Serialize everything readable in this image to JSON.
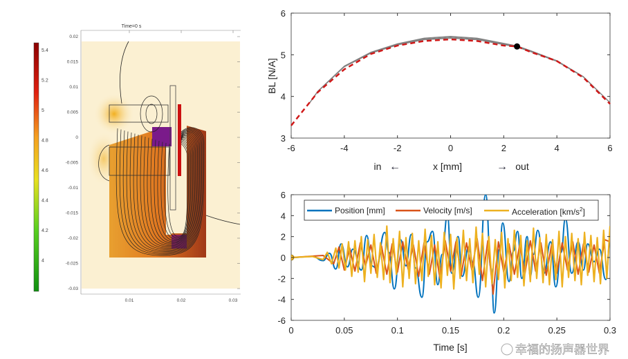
{
  "field_plot": {
    "title": "Time=0 s",
    "colorbar_ticks": [
      "5.4",
      "5.2",
      "5",
      "4.8",
      "4.6",
      "4.4",
      "4.2",
      "4"
    ],
    "colorbar_colors": [
      "#8b0000",
      "#e01010",
      "#f07820",
      "#f5d020",
      "#c8e020",
      "#30c020",
      "#109010"
    ],
    "y_ticks": [
      "0.02",
      "0.015",
      "0.01",
      "0.005",
      "0",
      "-0.005",
      "-0.01",
      "-0.015",
      "-0.02",
      "-0.025",
      "-0.03"
    ],
    "x_ticks": [
      "0.01",
      "0.02",
      "0.03"
    ]
  },
  "watermark": "幸福的扬声器世界",
  "chart_data": [
    {
      "type": "line",
      "xlabel": "x [mm]",
      "xlabel_left": "in",
      "xlabel_right": "out",
      "ylabel": "BL [N/A]",
      "xlim": [
        -6,
        6
      ],
      "ylim": [
        3,
        6
      ],
      "x_ticks": [
        "-6",
        "-4",
        "-2",
        "0",
        "2",
        "4",
        "6"
      ],
      "y_ticks": [
        "3",
        "4",
        "5",
        "6"
      ],
      "grid": false,
      "series": [
        {
          "style": "dashed",
          "color": "#d01818",
          "x": [
            -6,
            -5,
            -4,
            -3,
            -2,
            -1,
            0,
            1,
            2,
            2.5,
            3,
            4,
            5,
            6
          ],
          "y": [
            3.3,
            4.1,
            4.65,
            5.02,
            5.22,
            5.33,
            5.37,
            5.33,
            5.22,
            5.2,
            5.07,
            4.85,
            4.45,
            3.82
          ]
        },
        {
          "style": "solid",
          "color": "#808080",
          "x": [
            -5.3,
            -5,
            -4,
            -3,
            -2,
            -1,
            0,
            1,
            2,
            2.5,
            3,
            4,
            5,
            6
          ],
          "y": [
            3.85,
            4.12,
            4.72,
            5.05,
            5.25,
            5.38,
            5.42,
            5.38,
            5.26,
            5.2,
            5.09,
            4.85,
            4.47,
            3.85
          ]
        }
      ],
      "marker": {
        "x": 2.5,
        "y": 5.2,
        "color": "#000000"
      }
    },
    {
      "type": "line",
      "xlabel": "Time [s]",
      "xlim": [
        0,
        0.3
      ],
      "ylim": [
        -6,
        6
      ],
      "x_ticks": [
        "0",
        "0.05",
        "0.1",
        "0.15",
        "0.2",
        "0.25",
        "0.3"
      ],
      "y_ticks": [
        "-6",
        "-4",
        "-2",
        "0",
        "2",
        "4",
        "6"
      ],
      "grid": false,
      "legend": "top",
      "marker": {
        "x": 0,
        "y": 0,
        "color": "#edb120"
      },
      "series": [
        {
          "name": "Position [mm]",
          "color": "#0072bd",
          "x": [
            0,
            0.02,
            0.03,
            0.036,
            0.042,
            0.047,
            0.053,
            0.058,
            0.066,
            0.071,
            0.076,
            0.08,
            0.088,
            0.092,
            0.097,
            0.103,
            0.108,
            0.113,
            0.117,
            0.123,
            0.128,
            0.133,
            0.138,
            0.142,
            0.147,
            0.151,
            0.157,
            0.161,
            0.167,
            0.171,
            0.176,
            0.183,
            0.188,
            0.191,
            0.196,
            0.199,
            0.205,
            0.209,
            0.213,
            0.217,
            0.222,
            0.225,
            0.228,
            0.232,
            0.238,
            0.244,
            0.249,
            0.254,
            0.258,
            0.264,
            0.27,
            0.275,
            0.279,
            0.285,
            0.29,
            0.296,
            0.3
          ],
          "y": [
            0,
            0.1,
            -0.3,
            0.4,
            -1.1,
            1.3,
            -0.9,
            0.8,
            -1.2,
            2.1,
            -0.8,
            -1.0,
            2.4,
            0.5,
            -3.0,
            1.7,
            -0.8,
            2.2,
            -1.0,
            -3.8,
            1.5,
            2.5,
            -2.6,
            0.3,
            4.0,
            -1.5,
            2.0,
            -1.8,
            1.0,
            -0.5,
            -3.8,
            6.0,
            -1.0,
            -5.3,
            0.8,
            3.3,
            -2.3,
            0.6,
            2.5,
            -2.0,
            2.0,
            -1.8,
            0.3,
            2.6,
            -1.5,
            1.5,
            -2.8,
            0.5,
            3.7,
            -1.5,
            1.5,
            -1.2,
            1.3,
            -0.4,
            0.8,
            -2.1,
            1.5
          ]
        },
        {
          "name": "Velocity [m/s]",
          "color": "#d95319",
          "x": [
            0,
            0.03,
            0.04,
            0.045,
            0.05,
            0.055,
            0.06,
            0.065,
            0.07,
            0.075,
            0.08,
            0.085,
            0.09,
            0.095,
            0.1,
            0.105,
            0.11,
            0.115,
            0.12,
            0.125,
            0.13,
            0.135,
            0.14,
            0.145,
            0.15,
            0.155,
            0.16,
            0.165,
            0.17,
            0.175,
            0.18,
            0.185,
            0.19,
            0.195,
            0.2,
            0.205,
            0.21,
            0.215,
            0.22,
            0.225,
            0.23,
            0.235,
            0.24,
            0.245,
            0.25,
            0.255,
            0.26,
            0.265,
            0.27,
            0.275,
            0.28,
            0.285,
            0.29,
            0.295,
            0.3
          ],
          "y": [
            0,
            0.2,
            -0.6,
            1.0,
            -1.2,
            0.9,
            -1.3,
            1.4,
            -0.8,
            1.2,
            -1.5,
            1.1,
            -1.6,
            1.3,
            -1.4,
            1.5,
            -1.1,
            1.2,
            -1.8,
            1.4,
            -1.6,
            1.2,
            -2.0,
            1.6,
            -1.3,
            1.5,
            -1.7,
            1.4,
            -1.2,
            1.8,
            -2.2,
            1.6,
            -3.5,
            1.5,
            -1.4,
            1.3,
            -1.6,
            1.2,
            -1.5,
            1.6,
            -1.3,
            1.4,
            -1.7,
            1.2,
            -1.5,
            1.4,
            -1.2,
            1.5,
            -1.6,
            1.3,
            -1.4,
            1.2,
            -1.5,
            1.7,
            1.5
          ]
        },
        {
          "name": "Acceleration [km/s2]",
          "label_main": "Acceleration [km/s",
          "label_sup": "2",
          "label_end": "]",
          "color": "#edb120",
          "x": [
            0,
            0.02,
            0.03,
            0.034,
            0.038,
            0.042,
            0.045,
            0.048,
            0.051,
            0.054,
            0.057,
            0.06,
            0.063,
            0.066,
            0.069,
            0.072,
            0.075,
            0.078,
            0.081,
            0.084,
            0.087,
            0.09,
            0.093,
            0.096,
            0.099,
            0.102,
            0.105,
            0.108,
            0.111,
            0.114,
            0.117,
            0.12,
            0.123,
            0.126,
            0.129,
            0.132,
            0.135,
            0.138,
            0.141,
            0.144,
            0.147,
            0.15,
            0.153,
            0.156,
            0.159,
            0.162,
            0.165,
            0.168,
            0.171,
            0.174,
            0.177,
            0.18,
            0.183,
            0.186,
            0.189,
            0.192,
            0.195,
            0.198,
            0.201,
            0.204,
            0.207,
            0.21,
            0.213,
            0.216,
            0.219,
            0.222,
            0.225,
            0.228,
            0.231,
            0.234,
            0.237,
            0.24,
            0.243,
            0.246,
            0.249,
            0.252,
            0.255,
            0.258,
            0.261,
            0.264,
            0.267,
            0.27,
            0.273,
            0.276,
            0.279,
            0.282,
            0.285,
            0.288,
            0.291,
            0.294,
            0.297,
            0.3
          ],
          "y": [
            0,
            0.1,
            -0.2,
            0.5,
            -0.6,
            0.9,
            -1.0,
            1.3,
            -1.2,
            1.5,
            -1.8,
            1.6,
            -1.4,
            2.0,
            -2.3,
            1.7,
            -1.5,
            2.2,
            -1.9,
            1.4,
            -2.1,
            3.0,
            -2.4,
            1.8,
            -1.6,
            2.5,
            -2.8,
            1.9,
            -2.0,
            2.3,
            -2.5,
            1.6,
            -2.2,
            2.7,
            -1.8,
            2.1,
            -2.6,
            1.5,
            -2.9,
            2.4,
            -1.7,
            2.2,
            -3.0,
            1.9,
            -2.0,
            2.6,
            -2.2,
            1.8,
            -2.4,
            2.9,
            -1.6,
            2.3,
            -2.8,
            2.0,
            -2.5,
            1.7,
            -2.1,
            2.4,
            -2.9,
            1.8,
            -2.2,
            2.6,
            -1.9,
            2.1,
            -2.7,
            1.6,
            -2.3,
            2.8,
            -2.0,
            1.9,
            -2.4,
            2.2,
            -2.6,
            1.7,
            -2.1,
            2.5,
            -2.8,
            2.0,
            -1.9,
            2.3,
            -2.2,
            1.8,
            -2.6,
            2.4,
            -1.7,
            2.1,
            -2.3,
            1.9,
            -2.5,
            2.6,
            -2.0,
            3.0
          ]
        }
      ]
    }
  ]
}
